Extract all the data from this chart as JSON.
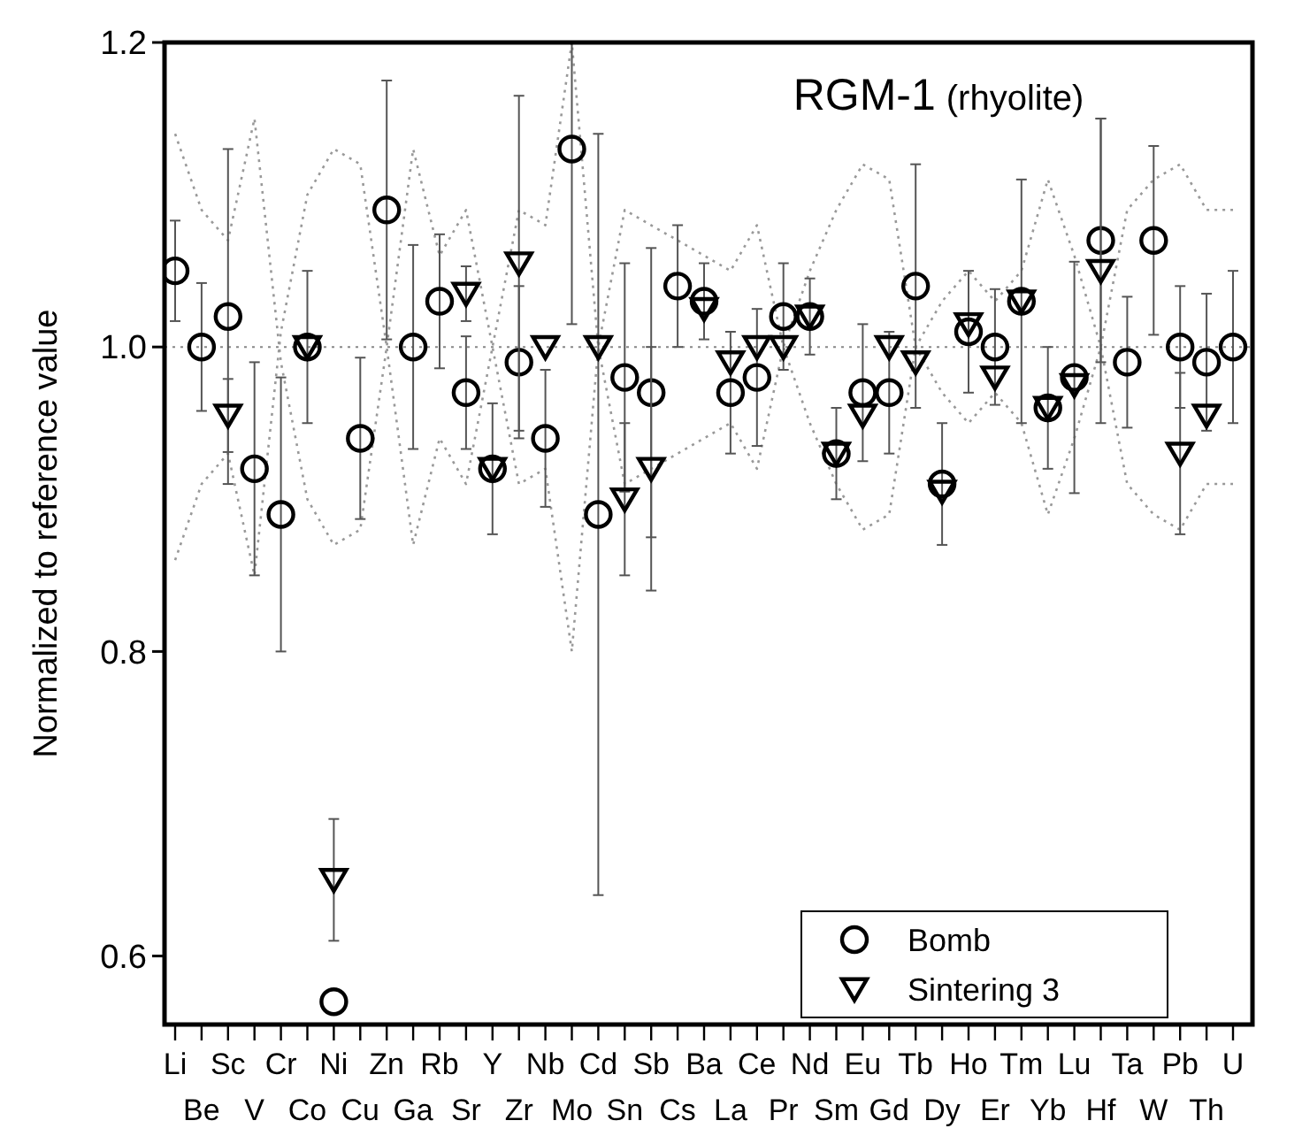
{
  "chart_data": {
    "type": "scatter",
    "title": "RGM-1",
    "subtitle": "(rhyolite)",
    "ylabel": "Normalized to reference value",
    "categories": [
      "Li",
      "Be",
      "Sc",
      "V",
      "Cr",
      "Co",
      "Ni",
      "Cu",
      "Zn",
      "Ga",
      "Rb",
      "Sr",
      "Y",
      "Zr",
      "Nb",
      "Mo",
      "Cd",
      "Sn",
      "Sb",
      "Cs",
      "Ba",
      "La",
      "Ce",
      "Pr",
      "Nd",
      "Sm",
      "Eu",
      "Gd",
      "Tb",
      "Dy",
      "Ho",
      "Er",
      "Tm",
      "Yb",
      "Lu",
      "Hf",
      "Ta",
      "W",
      "Pb",
      "Th",
      "U"
    ],
    "ylim": [
      0.555,
      1.2
    ],
    "yticks": [
      0.6,
      0.8,
      {
        "value": 1,
        "label": "1.0"
      },
      {
        "value": 1.2,
        "label": "1.2"
      }
    ],
    "legend": "bottom right",
    "ref_lines": [
      {
        "axis": "y",
        "value": 1,
        "line_style": "dotted",
        "color": "#888888"
      }
    ],
    "series": [
      {
        "type": "line",
        "color": "#999999",
        "marker": "none",
        "line_style": "dotted",
        "values": [
          1.14,
          1.09,
          1.07,
          1.15,
          0.99,
          0.9,
          0.87,
          0.88,
          1.0,
          0.87,
          0.94,
          0.91,
          1.0,
          1.09,
          1.08,
          1.2,
          1.0,
          0.91,
          0.92,
          0.93,
          0.94,
          0.95,
          0.92,
          1.0,
          1.05,
          1.09,
          1.12,
          1.11,
          1.0,
          0.97,
          0.95,
          0.97,
          0.95,
          0.89,
          0.94,
          1.0,
          1.09,
          1.11,
          1.12,
          1.09,
          1.09
        ]
      },
      {
        "type": "line",
        "color": "#999999",
        "marker": "none",
        "line_style": "dotted",
        "values": [
          0.86,
          0.91,
          0.93,
          0.85,
          1.01,
          1.1,
          1.13,
          1.12,
          1.0,
          1.13,
          1.06,
          1.09,
          1.0,
          0.91,
          0.92,
          0.8,
          1.0,
          1.09,
          1.08,
          1.07,
          1.06,
          1.05,
          1.08,
          1.0,
          0.95,
          0.91,
          0.88,
          0.89,
          1.0,
          1.03,
          1.05,
          1.03,
          1.05,
          1.11,
          1.06,
          1.0,
          0.91,
          0.89,
          0.88,
          0.91,
          0.91
        ]
      },
      {
        "type": "scatter",
        "name": "Bomb",
        "color": "#000000",
        "marker": "circle",
        "values": [
          1.05,
          1.0,
          1.02,
          0.92,
          0.89,
          1.0,
          0.57,
          0.94,
          1.09,
          1.0,
          1.03,
          0.97,
          0.92,
          0.99,
          0.94,
          1.13,
          0.89,
          0.98,
          0.97,
          1.04,
          1.03,
          0.97,
          0.98,
          1.02,
          1.02,
          0.93,
          0.97,
          0.97,
          1.04,
          0.91,
          1.01,
          1.0,
          1.03,
          0.96,
          0.98,
          1.07,
          0.99,
          1.07,
          1.0,
          0.99,
          1.0
        ],
        "errors": [
          0.033,
          0.042,
          0.11,
          0.07,
          0.09,
          0.05,
          null,
          0.053,
          0.085,
          0.067,
          0.044,
          0.037,
          0.043,
          0.05,
          0.045,
          [
            1.015,
            1.2
          ],
          0.25,
          0.075,
          0.095,
          0.04,
          0.025,
          0.04,
          0.045,
          0.035,
          0.025,
          0.03,
          0.045,
          0.04,
          0.08,
          0.04,
          0.04,
          0.038,
          0.08,
          0.04,
          0.076,
          0.08,
          0.043,
          0.062,
          0.04,
          0.045,
          0.05
        ]
      },
      {
        "type": "scatter",
        "name": "Sintering 3",
        "color": "#000000",
        "marker": "triangle",
        "values": [
          null,
          null,
          0.955,
          null,
          null,
          1.0,
          0.65,
          null,
          null,
          null,
          null,
          1.035,
          0.92,
          1.055,
          1.0,
          null,
          1.0,
          0.9,
          0.92,
          null,
          1.025,
          0.99,
          1.0,
          1.0,
          1.02,
          0.93,
          0.955,
          1.0,
          0.99,
          0.905,
          1.015,
          0.98,
          1.03,
          0.96,
          0.975,
          1.05,
          null,
          null,
          0.93,
          0.955,
          null
        ],
        "errors": [
          null,
          null,
          0.024,
          null,
          null,
          null,
          [
            0.61,
            0.69
          ],
          null,
          null,
          null,
          null,
          0.018,
          null,
          0.11,
          null,
          null,
          null,
          0.05,
          0.08,
          null,
          null,
          null,
          null,
          null,
          null,
          null,
          null,
          null,
          null,
          null,
          null,
          null,
          null,
          null,
          null,
          0.1,
          null,
          null,
          0.053,
          null,
          null
        ]
      }
    ]
  }
}
